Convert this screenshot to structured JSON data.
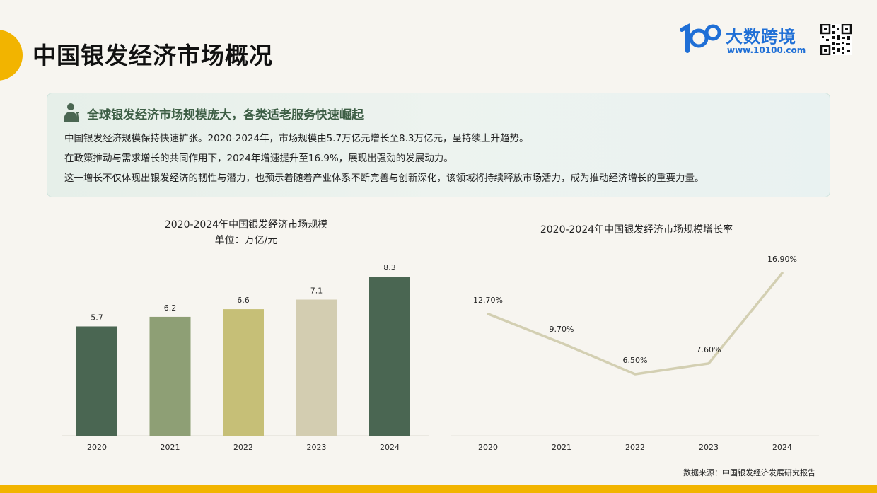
{
  "page": {
    "title": "中国银发经济市场概况",
    "brand": {
      "name": "大数跨境",
      "url": "www.10100.com",
      "primary_color": "#1f6fd6"
    },
    "accent_color": "#f2b400"
  },
  "summary": {
    "heading": "全球银发经济市场规模庞大，各类适老服务快速崛起",
    "lines": [
      "中国银发经济规模保持快速扩张。2020-2024年，市场规模由5.7万亿元增长至8.3万亿元，呈持续上升趋势。",
      "在政策推动与需求增长的共同作用下，2024年增速提升至16.9%，展现出强劲的发展动力。",
      "这一增长不仅体现出银发经济的韧性与潜力，也预示着随着产业体系不断完善与创新深化，该领域将持续释放市场活力，成为推动经济增长的重要力量。"
    ]
  },
  "chart_data": [
    {
      "type": "bar",
      "title": "2020-2024年中国银发经济市场规模",
      "subtitle": "单位：万亿/元",
      "categories": [
        "2020",
        "2021",
        "2022",
        "2023",
        "2024"
      ],
      "values": [
        5.7,
        6.2,
        6.6,
        7.1,
        8.3
      ],
      "labels": [
        "5.7",
        "6.2",
        "6.6",
        "7.1",
        "8.3"
      ],
      "colors": [
        "#4a6652",
        "#8e9f75",
        "#c6bf77",
        "#d3cdb1",
        "#4a6652"
      ],
      "ylim": [
        0,
        8.3
      ],
      "grid": false,
      "legend": "none"
    },
    {
      "type": "line",
      "title": "2020-2024年中国银发经济市场规模增长率",
      "categories": [
        "2020",
        "2021",
        "2022",
        "2023",
        "2024"
      ],
      "values": [
        12.7,
        9.7,
        6.5,
        7.6,
        16.9
      ],
      "labels": [
        "12.70%",
        "9.70%",
        "6.50%",
        "7.60%",
        "16.90%"
      ],
      "color": "#d3cfb2",
      "grid": false,
      "legend": "none"
    }
  ],
  "footer": {
    "source": "数据来源：中国银发经济发展研究报告"
  }
}
